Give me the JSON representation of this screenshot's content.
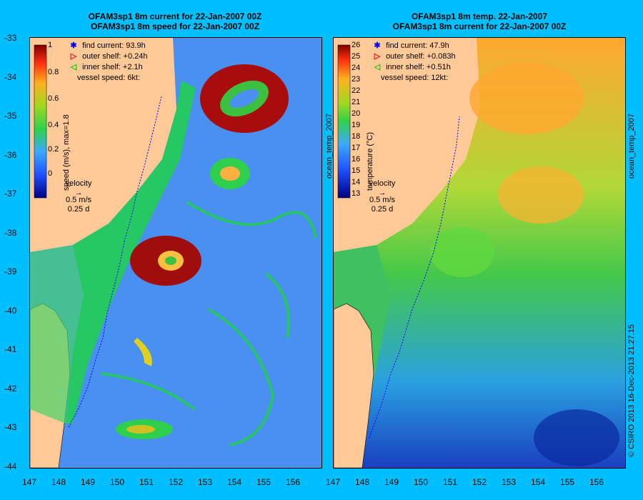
{
  "left_panel": {
    "title_line1": "OFAM3sp1 8m current for 22-Jan-2007 00Z",
    "title_line2": "OFAM3sp1 8m speed for 22-Jan-2007 00Z",
    "colorbar_label": "speed (m/s), max=1.8",
    "colorbar_ticks": [
      "1",
      "0.8",
      "0.6",
      "0.4",
      "0.2",
      "0"
    ],
    "legend": {
      "find_current": "find current: 93.9h",
      "outer_shelf": "outer shelf: +0.24h",
      "inner_shelf": "inner shelf: +2.1h",
      "vessel_speed": "vessel speed: 6kt:"
    },
    "velocity_key": {
      "label": "velocity",
      "speed": "0.5 m/s",
      "duration": "0.25 d"
    }
  },
  "right_panel": {
    "title_line1": "OFAM3sp1 8m temp. 22-Jan-2007",
    "title_line2": "OFAM3sp1 8m current for 22-Jan-2007 00Z",
    "colorbar_label": "temperature (°C)",
    "colorbar_ticks": [
      "26",
      "25",
      "24",
      "23",
      "22",
      "21",
      "20",
      "19",
      "18",
      "17",
      "16",
      "15",
      "14",
      "13"
    ],
    "legend": {
      "find_current": "find current: 47.9h",
      "outer_shelf": "outer shelf: +0.083h",
      "inner_shelf": "inner shelf: +0.51h",
      "vessel_speed": "vessel speed: 12kt:"
    },
    "velocity_key": {
      "label": "velocity",
      "speed": "0.5 m/s",
      "duration": "0.25 d"
    },
    "side_label": "ocean_temp_2007"
  },
  "left_side_label": "ocean_temp_2007",
  "y_ticks": [
    "-33",
    "-34",
    "-35",
    "-36",
    "-37",
    "-38",
    "-39",
    "-40",
    "-41",
    "-42",
    "-43",
    "-44"
  ],
  "x_ticks": [
    "147",
    "148",
    "149",
    "150",
    "151",
    "152",
    "153",
    "154",
    "155",
    "156"
  ],
  "copyright": "© CSIRO 2013   16-Dec-2013 21:27:15",
  "colors": {
    "background": "#00bfff",
    "land": "#ffc998",
    "find_marker": "#0000ff",
    "outer_marker": "#ff0000",
    "inner_marker": "#00cc00"
  }
}
